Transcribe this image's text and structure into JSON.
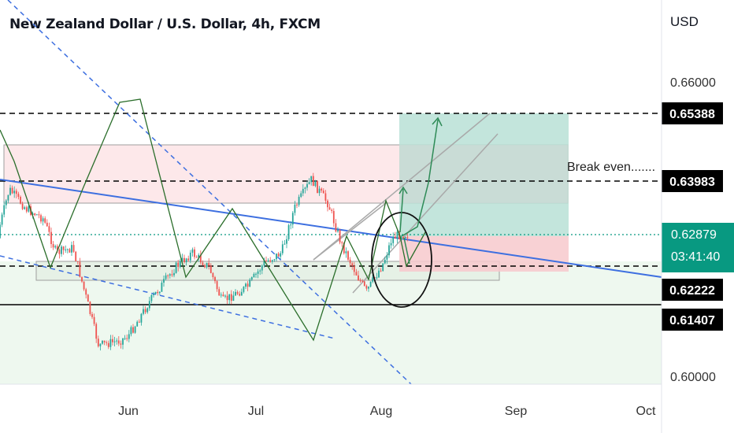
{
  "header": {
    "title": "New Zealand Dollar / U.S. Dollar, 4h, FXCM",
    "currency": "USD"
  },
  "chart_data": {
    "type": "candlestick",
    "symbol": "NZDUSD",
    "timeframe": "4h",
    "ylim": [
      0.598,
      0.67
    ],
    "y_ticks": [
      0.6,
      0.66
    ],
    "x_ticks": [
      "Jun",
      "Jul",
      "Aug",
      "Sep",
      "Oct"
    ],
    "grid": false,
    "price_path": [
      {
        "date": "2023-05-01",
        "price": 0.628
      },
      {
        "date": "2023-05-04",
        "price": 0.638
      },
      {
        "date": "2023-05-08",
        "price": 0.634
      },
      {
        "date": "2023-05-12",
        "price": 0.632
      },
      {
        "date": "2023-05-15",
        "price": 0.625
      },
      {
        "date": "2023-05-19",
        "price": 0.626
      },
      {
        "date": "2023-05-25",
        "price": 0.606
      },
      {
        "date": "2023-05-30",
        "price": 0.607
      },
      {
        "date": "2023-06-01",
        "price": 0.608
      },
      {
        "date": "2023-06-06",
        "price": 0.615
      },
      {
        "date": "2023-06-12",
        "price": 0.622
      },
      {
        "date": "2023-06-16",
        "price": 0.625
      },
      {
        "date": "2023-06-20",
        "price": 0.622
      },
      {
        "date": "2023-06-23",
        "price": 0.615
      },
      {
        "date": "2023-06-29",
        "price": 0.618
      },
      {
        "date": "2023-07-03",
        "price": 0.623
      },
      {
        "date": "2023-07-07",
        "price": 0.625
      },
      {
        "date": "2023-07-10",
        "price": 0.634
      },
      {
        "date": "2023-07-14",
        "price": 0.64
      },
      {
        "date": "2023-07-18",
        "price": 0.635
      },
      {
        "date": "2023-07-21",
        "price": 0.627
      },
      {
        "date": "2023-07-25",
        "price": 0.62
      },
      {
        "date": "2023-07-27",
        "price": 0.617
      },
      {
        "date": "2023-07-31",
        "price": 0.623
      },
      {
        "date": "2023-08-02",
        "price": 0.628
      },
      {
        "date": "2023-08-04",
        "price": 0.6288
      }
    ],
    "price_lines": [
      {
        "label": "0.65388",
        "price": 0.65388,
        "style": "dashed"
      },
      {
        "label": "0.63983",
        "price": 0.63983,
        "style": "dashed"
      },
      {
        "label": "0.62879",
        "price": 0.62879,
        "style": "dotted",
        "color": "#089981"
      },
      {
        "label": "0.62222",
        "price": 0.62222,
        "style": "dashed"
      },
      {
        "label": "0.61407",
        "price": 0.61407,
        "style": "solid"
      }
    ],
    "annotations": {
      "break_even_text": "Break even.......",
      "countdown": "03:41:40",
      "y_label_top": "0.66000",
      "y_label_bottom": "0.60000"
    }
  },
  "colors": {
    "up": "#26a69a",
    "down": "#ef5350",
    "trend_blue": "#3d6fe0",
    "arrow_green": "#2e8b57",
    "last_price": "#089981"
  }
}
